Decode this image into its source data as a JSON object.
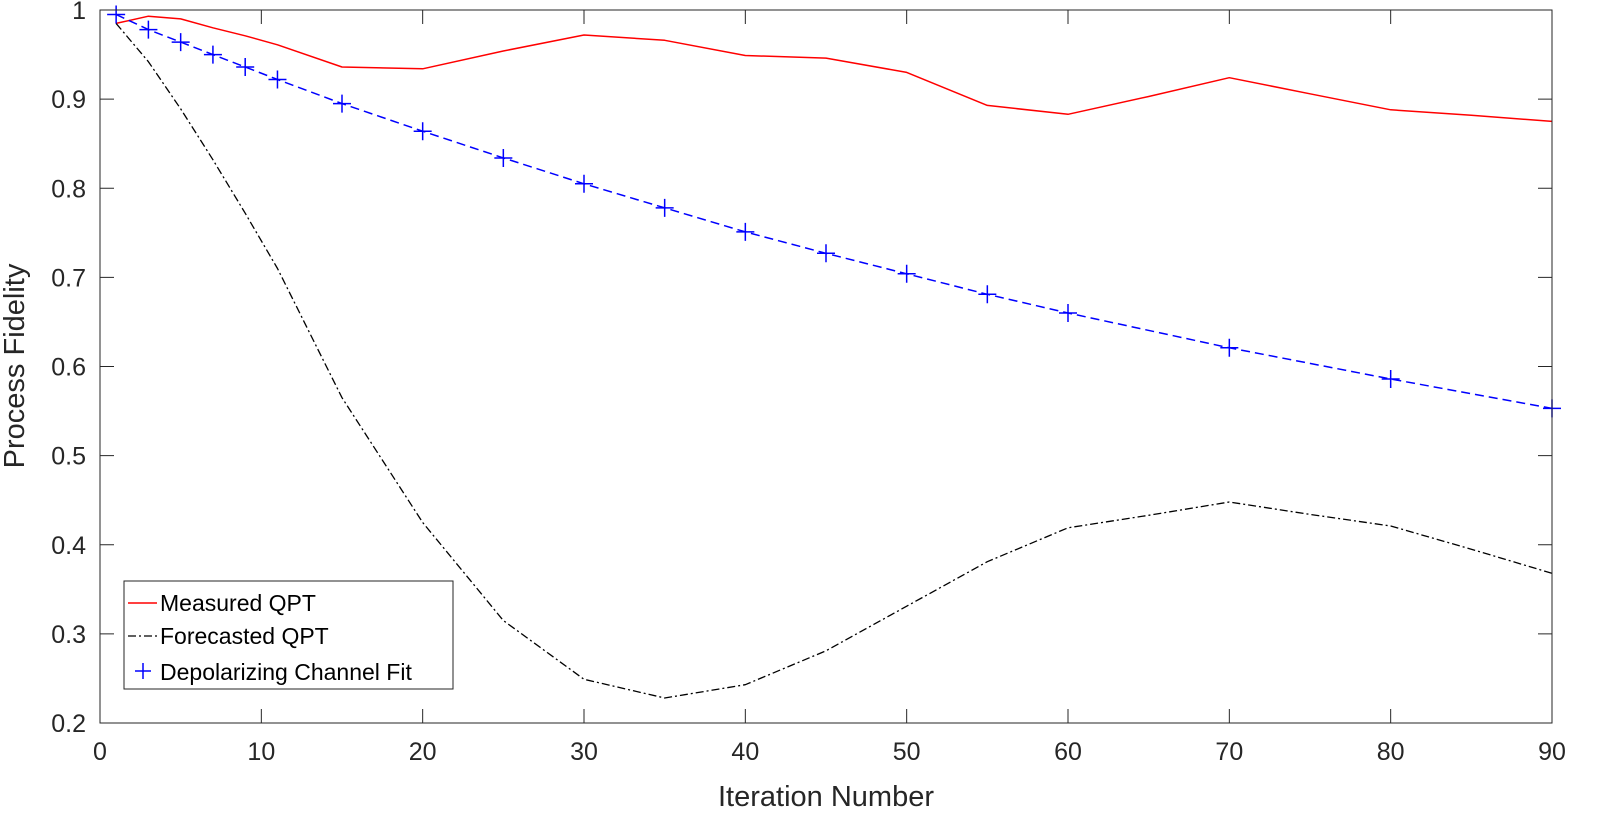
{
  "chart_data": {
    "type": "line",
    "title": "",
    "xlabel": "Iteration Number",
    "ylabel": "Process Fidelity",
    "xlim": [
      0,
      90
    ],
    "ylim": [
      0.2,
      1
    ],
    "xticks": [
      0,
      10,
      20,
      30,
      40,
      50,
      60,
      70,
      80,
      90
    ],
    "yticks": [
      0.2,
      0.3,
      0.4,
      0.5,
      0.6,
      0.7,
      0.8,
      0.9,
      1
    ],
    "ytick_labels": [
      "0.2",
      "0.3",
      "0.4",
      "0.5",
      "0.6",
      "0.7",
      "0.8",
      "0.9",
      "1"
    ],
    "grid": false,
    "legend_position": "bottom-left",
    "series": [
      {
        "name": "Measured QPT",
        "color": "#ff0000",
        "style": "solid",
        "marker": "none",
        "x": [
          1,
          3,
          5,
          7,
          9,
          11,
          15,
          20,
          25,
          30,
          35,
          40,
          45,
          50,
          55,
          60,
          65,
          70,
          75,
          80,
          85,
          90
        ],
        "y": [
          0.985,
          0.993,
          0.99,
          0.98,
          0.971,
          0.961,
          0.936,
          0.934,
          0.954,
          0.972,
          0.966,
          0.949,
          0.946,
          0.93,
          0.893,
          0.883,
          0.903,
          0.924,
          0.906,
          0.888,
          0.882,
          0.875
        ]
      },
      {
        "name": "Forecasted QPT",
        "color": "#000000",
        "style": "dashdot",
        "marker": "none",
        "x": [
          1,
          3,
          5,
          7,
          9,
          11,
          15,
          20,
          25,
          30,
          35,
          40,
          45,
          50,
          55,
          60,
          65,
          70,
          75,
          80,
          85,
          90
        ],
        "y": [
          0.985,
          0.942,
          0.889,
          0.832,
          0.772,
          0.71,
          0.565,
          0.425,
          0.315,
          0.249,
          0.228,
          0.243,
          0.281,
          0.331,
          0.381,
          0.419,
          0.433,
          0.448,
          0.434,
          0.421,
          0.395,
          0.368
        ]
      },
      {
        "name": "Depolarizing Channel Fit",
        "color": "#0000ff",
        "style": "dashed",
        "marker": "plus",
        "x": [
          1,
          3,
          5,
          7,
          9,
          11,
          15,
          20,
          25,
          30,
          35,
          40,
          45,
          50,
          55,
          60,
          70,
          80,
          90
        ],
        "y": [
          0.995,
          0.978,
          0.964,
          0.95,
          0.936,
          0.922,
          0.895,
          0.864,
          0.834,
          0.805,
          0.778,
          0.751,
          0.727,
          0.704,
          0.681,
          0.66,
          0.621,
          0.586,
          0.553
        ]
      }
    ]
  }
}
